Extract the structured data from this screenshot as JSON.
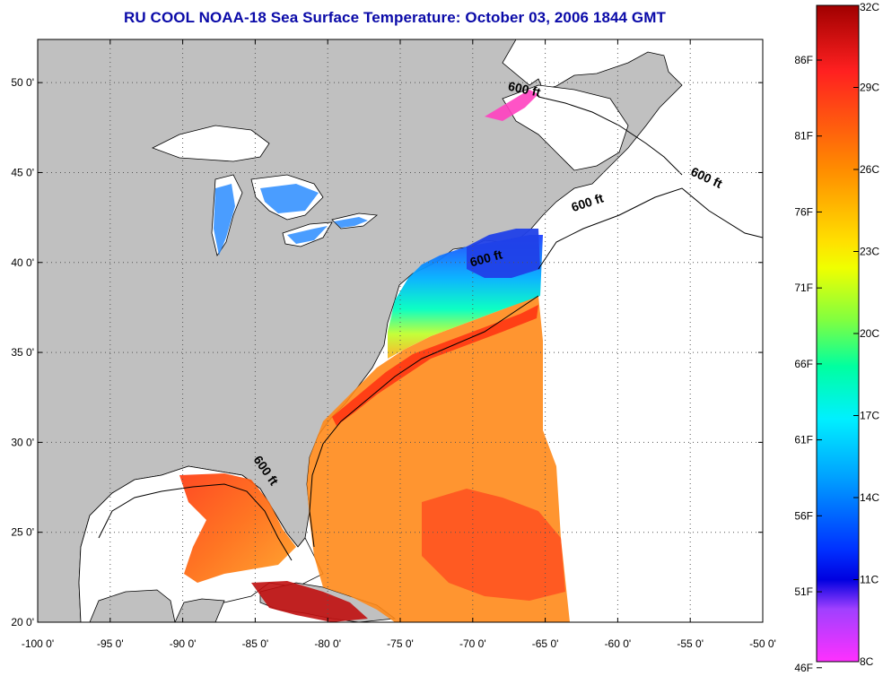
{
  "title": "RU COOL  NOAA-18  Sea Surface Temperature:  October 03, 2006 1844 GMT",
  "map": {
    "lon_range": [
      -100,
      -50
    ],
    "lat_range": [
      20,
      52.4
    ],
    "lon_ticks": [
      "-100 0'",
      "-95 0'",
      "-90 0'",
      "-85 0'",
      "-80 0'",
      "-75 0'",
      "-70 0'",
      "-65 0'",
      "-60 0'",
      "-55 0'",
      "-50 0'"
    ],
    "lat_ticks": [
      "20 0'",
      "25 0'",
      "30 0'",
      "35 0'",
      "40 0'",
      "45 0'",
      "50 0'"
    ],
    "contour_labels": [
      {
        "text": "600 ft",
        "lon": -66.5,
        "lat": 49.4,
        "angle": 12
      },
      {
        "text": "600 ft",
        "lon": -54,
        "lat": 44.5,
        "angle": 25
      },
      {
        "text": "600 ft",
        "lon": -62,
        "lat": 43.1,
        "angle": -18
      },
      {
        "text": "600 ft",
        "lon": -69,
        "lat": 40.0,
        "angle": -15
      },
      {
        "text": "600 ft",
        "lon": -84.5,
        "lat": 28.3,
        "angle": 55
      }
    ],
    "colors": {
      "land": "#c0c0c0",
      "ocean_nodata": "#ffffff",
      "grid": "#000000",
      "title": "#0a0aa8"
    }
  },
  "colorbar": {
    "celsius_ticks": [
      "32C",
      "29C",
      "26C",
      "23C",
      "20C",
      "17C",
      "14C",
      "11C",
      "8C"
    ],
    "fahrenheit_ticks": [
      "86F",
      "81F",
      "76F",
      "71F",
      "66F",
      "61F",
      "56F",
      "51F",
      "46F"
    ],
    "range_c": [
      8,
      32
    ],
    "gradient": [
      "#a00000",
      "#ff2020",
      "#ff8c00",
      "#ffd000",
      "#f0ff00",
      "#80ff40",
      "#00ffa0",
      "#00f0ff",
      "#00a0ff",
      "#0040ff",
      "#0000e0",
      "#a040ff",
      "#ff40ff"
    ]
  }
}
